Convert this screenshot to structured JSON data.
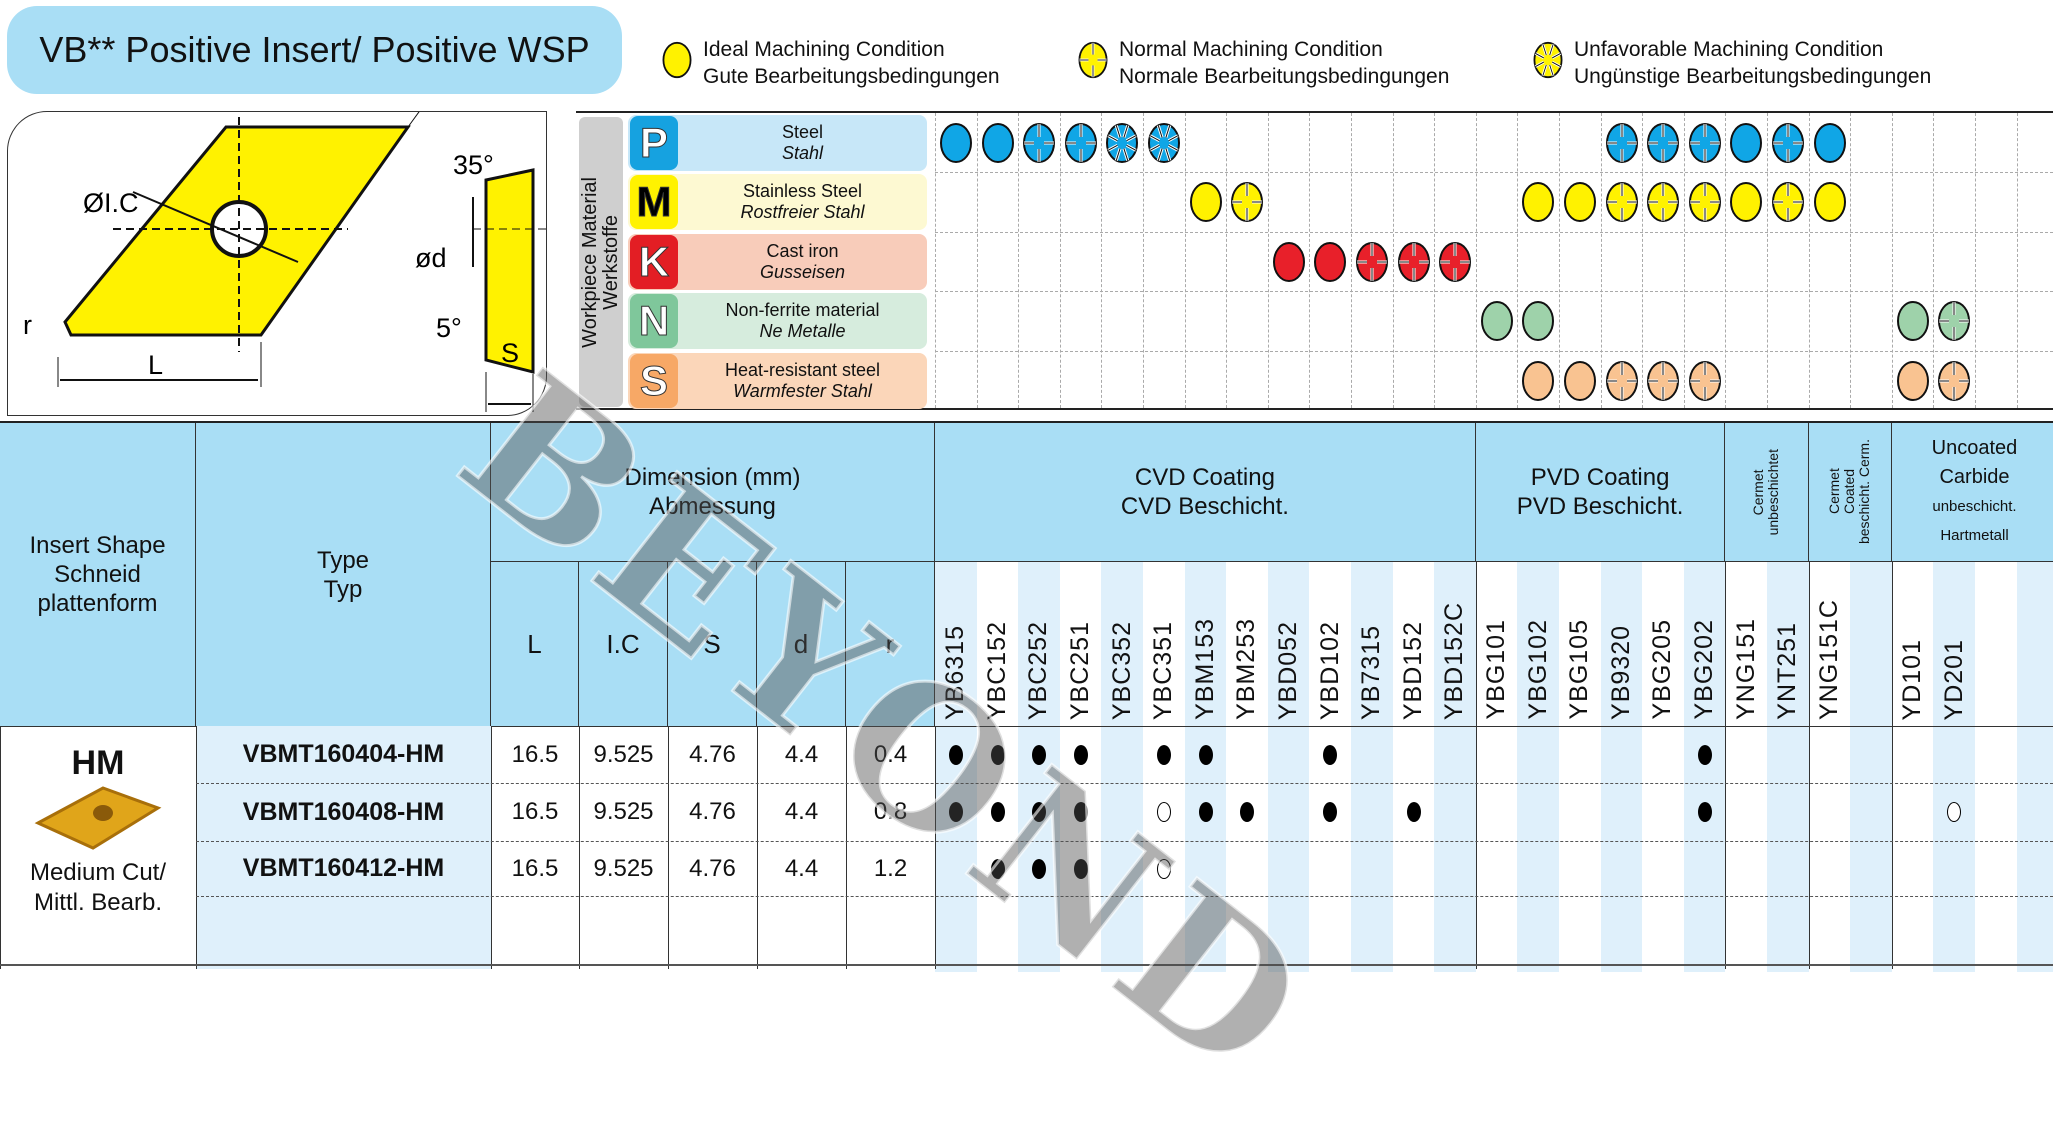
{
  "title": "VB** Positive Insert/ Positive WSP",
  "legend": [
    {
      "en": "Ideal Machining Condition",
      "de": "Gute Bearbeitungsbedingungen",
      "icon": "ideal-condition-icon"
    },
    {
      "en": "Normal Machining Condition",
      "de": "Normale Bearbeitungsbedingungen",
      "icon": "normal-condition-icon"
    },
    {
      "en": "Unfavorable Machining Condition",
      "de": "Ungünstige Bearbeitungsbedingungen",
      "icon": "unfavorable-condition-icon"
    }
  ],
  "drawing": {
    "ic": "ØI.C",
    "angle1": "35°",
    "d": "ød",
    "angle2": "5°",
    "r": "r",
    "L": "L",
    "S": "S"
  },
  "workpiece_label": {
    "en": "Workpiece Material",
    "de": "Werkstoffe"
  },
  "materials": [
    {
      "letter": "P",
      "en": "Steel",
      "de": "Stahl",
      "bg": "#c7e7f8",
      "badge": "#16a2e0",
      "fill": "#10a6e6",
      "letter_color": "#fff",
      "marks": [
        [
          0,
          "ideal"
        ],
        [
          1,
          "ideal"
        ],
        [
          2,
          "normal"
        ],
        [
          3,
          "normal"
        ],
        [
          4,
          "unfavorable"
        ],
        [
          5,
          "unfavorable"
        ],
        [
          16,
          "normal"
        ],
        [
          17,
          "normal"
        ],
        [
          18,
          "normal"
        ],
        [
          19,
          "ideal"
        ],
        [
          20,
          "normal"
        ],
        [
          21,
          "ideal"
        ]
      ]
    },
    {
      "letter": "M",
      "en": "Stainless Steel",
      "de": "Rostfreier Stahl",
      "bg": "#fdf9d2",
      "badge": "#fff200",
      "fill": "#fff200",
      "letter_color": "#000",
      "marks": [
        [
          6,
          "ideal"
        ],
        [
          7,
          "normal"
        ],
        [
          14,
          "ideal"
        ],
        [
          15,
          "ideal"
        ],
        [
          16,
          "normal"
        ],
        [
          17,
          "normal"
        ],
        [
          18,
          "normal"
        ],
        [
          19,
          "ideal"
        ],
        [
          20,
          "normal"
        ],
        [
          21,
          "ideal"
        ]
      ]
    },
    {
      "letter": "K",
      "en": "Cast iron",
      "de": "Gusseisen",
      "bg": "#f8ccba",
      "badge": "#e31e24",
      "fill": "#e8202a",
      "letter_color": "#fff",
      "marks": [
        [
          8,
          "ideal"
        ],
        [
          9,
          "ideal"
        ],
        [
          10,
          "normal"
        ],
        [
          11,
          "normal"
        ],
        [
          12,
          "normal"
        ]
      ]
    },
    {
      "letter": "N",
      "en": "Non-ferrite material",
      "de": "Ne Metalle",
      "bg": "#d6ecdd",
      "badge": "#7fc79b",
      "fill": "#9ed2aa",
      "letter_color": "#fff",
      "marks": [
        [
          13,
          "ideal"
        ],
        [
          14,
          "ideal"
        ],
        [
          23,
          "ideal"
        ],
        [
          24,
          "normal"
        ]
      ]
    },
    {
      "letter": "S",
      "en": "Heat-resistant steel",
      "de": "Warmfester Stahl",
      "bg": "#fbd6b9",
      "badge": "#f7a866",
      "fill": "#f9c391",
      "letter_color": "#fff",
      "marks": [
        [
          14,
          "ideal"
        ],
        [
          15,
          "ideal"
        ],
        [
          16,
          "normal"
        ],
        [
          17,
          "normal"
        ],
        [
          18,
          "normal"
        ],
        [
          23,
          "ideal"
        ],
        [
          24,
          "normal"
        ]
      ]
    }
  ],
  "table": {
    "insert_shape_header": [
      "Insert Shape",
      "Schneid",
      "plattenform"
    ],
    "type_header": [
      "Type",
      "Typ"
    ],
    "dimension_header": [
      "Dimension (mm)",
      "Abmessung"
    ],
    "dim_cols": [
      "L",
      "I.C",
      "S",
      "d",
      "r"
    ],
    "groups": [
      {
        "lines": [
          "CVD Coating",
          "CVD Beschicht."
        ],
        "span": 13
      },
      {
        "lines": [
          "PVD Coating",
          "PVD Beschicht."
        ],
        "span": 6
      },
      {
        "lines": [
          "Cermet",
          "unbeschichtet"
        ],
        "span": 2,
        "vertical": true
      },
      {
        "lines": [
          "Cermet",
          "Coated",
          "beschicht. Cerm."
        ],
        "span": 2,
        "vertical": true
      },
      {
        "lines": [
          "Uncoated",
          "Carbide",
          "unbeschicht.",
          "Hartmetall"
        ],
        "span": 4
      }
    ],
    "grades": [
      "YB6315",
      "YBC152",
      "YBC252",
      "YBC251",
      "YBC352",
      "YBC351",
      "YBM153",
      "YBM253",
      "YBD052",
      "YBD102",
      "YB7315",
      "YBD152",
      "YBD152C",
      "YBG101",
      "YBG102",
      "YBG105",
      "YB9320",
      "YBG205",
      "YBG202",
      "YNG151",
      "YNT251",
      "YNG151C",
      "",
      "YD101",
      "YD201",
      "",
      ""
    ],
    "shape": {
      "code": "HM",
      "desc": [
        "Medium Cut/",
        "Mittl. Bearb."
      ]
    },
    "rows": [
      {
        "type": "VBMT160404-HM",
        "dims": [
          "16.5",
          "9.525",
          "4.76",
          "4.4",
          "0.4"
        ],
        "marks": {
          "0": "full",
          "1": "full",
          "2": "full",
          "3": "full",
          "5": "full",
          "6": "full",
          "9": "full",
          "18": "full"
        }
      },
      {
        "type": "VBMT160408-HM",
        "dims": [
          "16.5",
          "9.525",
          "4.76",
          "4.4",
          "0.8"
        ],
        "marks": {
          "0": "full",
          "1": "full",
          "2": "full",
          "3": "full",
          "5": "open",
          "6": "full",
          "7": "full",
          "9": "full",
          "11": "full",
          "18": "full",
          "24": "open"
        }
      },
      {
        "type": "VBMT160412-HM",
        "dims": [
          "16.5",
          "9.525",
          "4.76",
          "4.4",
          "1.2"
        ],
        "marks": {
          "1": "full",
          "2": "full",
          "3": "full",
          "5": "open"
        }
      },
      {
        "type": "",
        "dims": [
          "",
          "",
          "",
          "",
          ""
        ],
        "marks": {}
      }
    ]
  },
  "watermark": "BEYOND"
}
